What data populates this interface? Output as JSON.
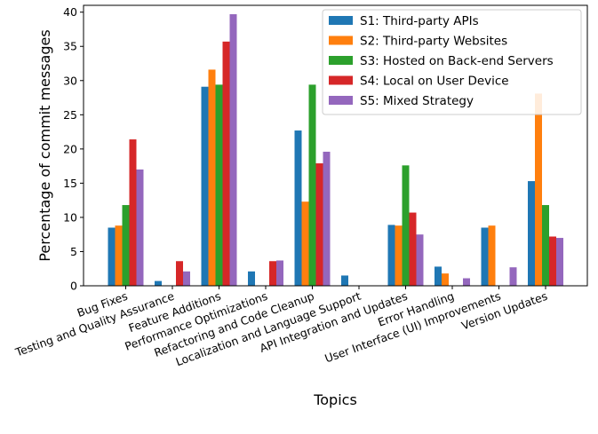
{
  "chart_data": {
    "type": "bar",
    "xlabel": "Topics",
    "ylabel": "Percentage of commit messages",
    "ylim": [
      0,
      41
    ],
    "yticks": [
      0,
      5,
      10,
      15,
      20,
      25,
      30,
      35,
      40
    ],
    "grid": false,
    "legend_position": "top-right",
    "categories": [
      "Bug Fixes",
      "Testing and Quality Assurance",
      "Feature Additions",
      "Performance Optimizations",
      "Refactoring and Code Cleanup",
      "Localization and Language Support",
      "API Integration and Updates",
      "Error Handling",
      "User Interface (UI) Improvements",
      "Version Updates"
    ],
    "series": [
      {
        "name": "S1: Third-party APIs",
        "color": "#1f77b4",
        "values": [
          8.5,
          0.7,
          29.1,
          2.1,
          22.7,
          1.5,
          8.9,
          2.8,
          8.5,
          15.3
        ]
      },
      {
        "name": "S2: Third-party Websites",
        "color": "#ff7f0e",
        "values": [
          8.8,
          0,
          31.6,
          0,
          12.3,
          0,
          8.8,
          1.8,
          8.8,
          28.1
        ]
      },
      {
        "name": "S3: Hosted on Back-end Servers",
        "color": "#2ca02c",
        "values": [
          11.8,
          0,
          29.4,
          0,
          29.4,
          0,
          17.6,
          0,
          0,
          11.8
        ]
      },
      {
        "name": "S4: Local on User Device",
        "color": "#d62728",
        "values": [
          21.4,
          3.6,
          35.7,
          3.6,
          17.9,
          0,
          10.7,
          0,
          0,
          7.2
        ]
      },
      {
        "name": "S5: Mixed Strategy",
        "color": "#9467bd",
        "values": [
          17.0,
          2.1,
          39.7,
          3.7,
          19.6,
          0,
          7.5,
          1.1,
          2.7,
          7.0
        ]
      }
    ]
  }
}
